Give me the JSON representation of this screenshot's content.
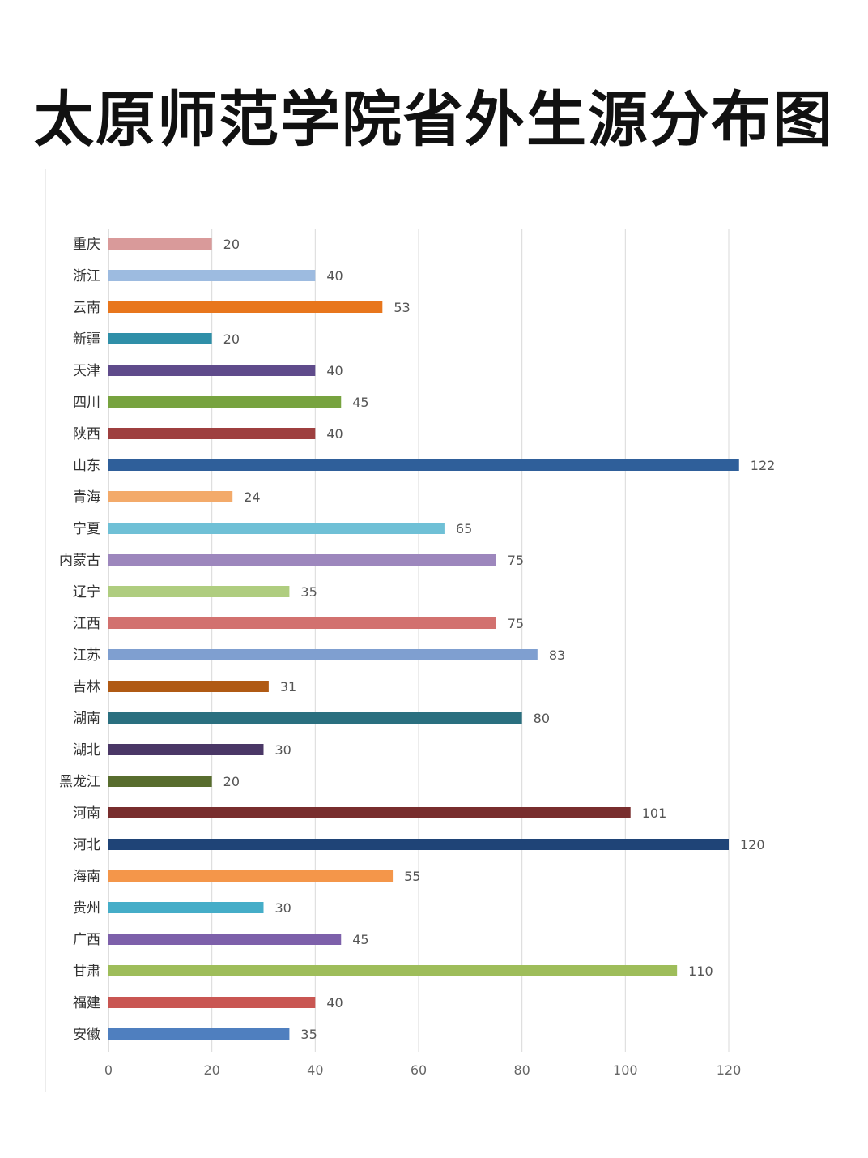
{
  "title": "太原师范学院省外生源分布图",
  "chart_data": {
    "type": "bar",
    "orientation": "horizontal",
    "title": "太原师范学院省外生源分布图",
    "xlabel": "",
    "ylabel": "",
    "xlim": [
      0,
      120
    ],
    "x_ticks": [
      "0",
      "20",
      "40",
      "60",
      "80",
      "100",
      "120"
    ],
    "grid": "vertical",
    "categories": [
      "重庆",
      "浙江",
      "云南",
      "新疆",
      "天津",
      "四川",
      "陕西",
      "山东",
      "青海",
      "宁夏",
      "内蒙古",
      "辽宁",
      "江西",
      "江苏",
      "吉林",
      "湖南",
      "湖北",
      "黑龙江",
      "河南",
      "河北",
      "海南",
      "贵州",
      "广西",
      "甘肃",
      "福建",
      "安徽"
    ],
    "values": [
      20,
      40,
      53,
      20,
      40,
      45,
      40,
      122,
      24,
      65,
      75,
      35,
      75,
      83,
      31,
      80,
      30,
      20,
      101,
      120,
      55,
      30,
      45,
      110,
      40,
      35
    ],
    "colors": [
      "#d99a9a",
      "#9dbbe0",
      "#e8761c",
      "#2f8fa8",
      "#5f4b8b",
      "#77a33f",
      "#9e3f3f",
      "#2f5f9a",
      "#f3aa6a",
      "#6fc0d6",
      "#9d87bd",
      "#afcd7f",
      "#d2716f",
      "#7f9fd0",
      "#b05a14",
      "#2a6f7f",
      "#4a3766",
      "#586d2e",
      "#782d2d",
      "#1f4477",
      "#f4964a",
      "#45adc8",
      "#7d60aa",
      "#9ebd5a",
      "#c95652",
      "#4f7fbf"
    ]
  }
}
